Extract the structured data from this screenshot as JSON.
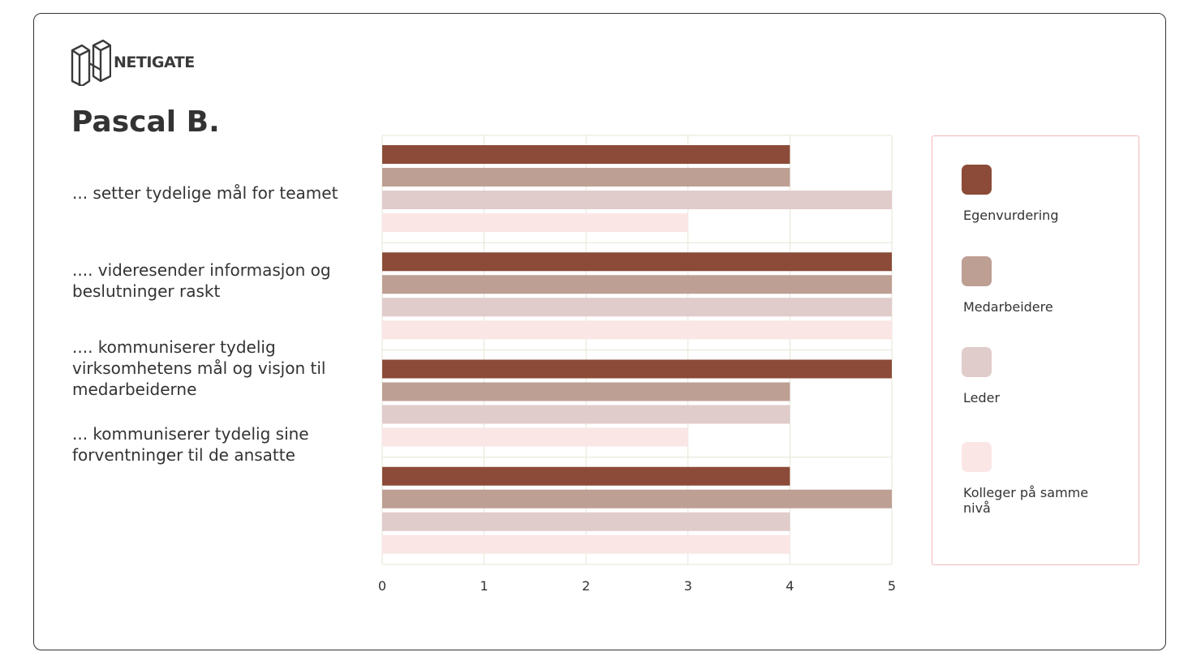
{
  "brand": {
    "name": "NETIGATE"
  },
  "person_name": "Pascal B.",
  "colors": {
    "egenvurdering": "#8b4b38",
    "medarbeidere": "#be9f94",
    "leder": "#e0cccb",
    "kolleger": "#fbe6e6",
    "grid": "#e6e6d6",
    "legend_border": "#f2b8b8"
  },
  "chart_data": {
    "type": "bar",
    "orientation": "horizontal",
    "categories": [
      "... setter tydelige mål for teamet",
      ".... videresender informasjon og beslutninger raskt",
      ".... kommuniserer tydelig virksomhetens mål og visjon til medarbeiderne",
      "... kommuniserer tydelig sine forventninger til de ansatte"
    ],
    "series": [
      {
        "name": "Egenvurdering",
        "color": "#8b4b38",
        "values": [
          4,
          5,
          5,
          4
        ]
      },
      {
        "name": "Medarbeidere",
        "color": "#be9f94",
        "values": [
          4,
          5,
          4,
          5
        ]
      },
      {
        "name": "Leder",
        "color": "#e0cccb",
        "values": [
          5,
          5,
          4,
          4
        ]
      },
      {
        "name": "Kolleger på samme nivå",
        "color": "#fbe6e6",
        "values": [
          3,
          5,
          3,
          4
        ]
      }
    ],
    "xlim": [
      0,
      5
    ],
    "xticks": [
      "0",
      "1",
      "2",
      "3",
      "4",
      "5"
    ],
    "grid": true,
    "legend_position": "right"
  }
}
